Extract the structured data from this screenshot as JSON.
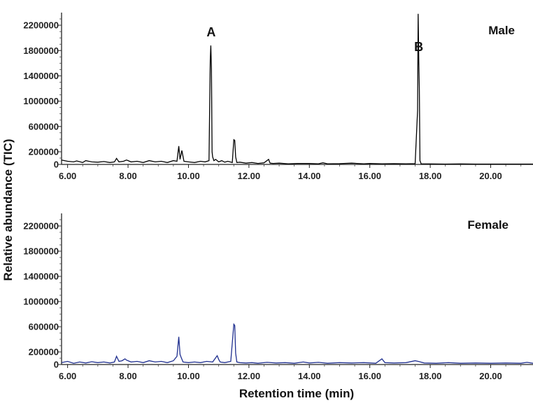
{
  "chart_data": [
    {
      "type": "line",
      "panel_label": "Male",
      "color": "#000000",
      "xlim": [
        5.8,
        21.4
      ],
      "ylim": [
        0,
        2400000
      ],
      "x_ticks": [
        "6.00",
        "8.00",
        "10.00",
        "12.00",
        "14.00",
        "16.00",
        "18.00",
        "20.00"
      ],
      "y_ticks": [
        "0",
        "200000",
        "600000",
        "1000000",
        "1400000",
        "1800000",
        "2200000"
      ],
      "peak_labels": [
        {
          "text": "A",
          "x": 10.75
        },
        {
          "text": "B",
          "x": 17.62
        }
      ],
      "series": [
        {
          "x": [
            5.8,
            6.0,
            6.2,
            6.3,
            6.5,
            6.6,
            6.8,
            7.0,
            7.2,
            7.4,
            7.55,
            7.62,
            7.7,
            7.85,
            7.95,
            8.1,
            8.3,
            8.5,
            8.7,
            8.9,
            9.1,
            9.3,
            9.5,
            9.62,
            9.68,
            9.72,
            9.78,
            9.85,
            10.0,
            10.2,
            10.4,
            10.55,
            10.68,
            10.72,
            10.74,
            10.76,
            10.78,
            10.8,
            10.84,
            10.9,
            11.0,
            11.1,
            11.2,
            11.3,
            11.45,
            11.5,
            11.53,
            11.56,
            11.6,
            11.7,
            11.9,
            12.1,
            12.3,
            12.5,
            12.65,
            12.7,
            12.8,
            13.0,
            13.3,
            13.6,
            14.0,
            14.3,
            14.45,
            14.6,
            15.0,
            15.4,
            15.8,
            16.0,
            16.4,
            16.8,
            17.2,
            17.5,
            17.58,
            17.6,
            17.62,
            17.64,
            17.66,
            17.7,
            18.0,
            18.5,
            19.0,
            19.5,
            20.0,
            20.5,
            21.0,
            21.4
          ],
          "y": [
            70000,
            50000,
            40000,
            55000,
            30000,
            60000,
            40000,
            35000,
            45000,
            30000,
            40000,
            95000,
            40000,
            50000,
            70000,
            40000,
            50000,
            30000,
            60000,
            40000,
            50000,
            30000,
            60000,
            50000,
            290000,
            80000,
            220000,
            50000,
            40000,
            30000,
            50000,
            40000,
            60000,
            1650000,
            1880000,
            1500000,
            200000,
            120000,
            60000,
            80000,
            40000,
            60000,
            35000,
            50000,
            30000,
            390000,
            380000,
            120000,
            30000,
            35000,
            20000,
            30000,
            15000,
            25000,
            80000,
            20000,
            15000,
            20000,
            10000,
            15000,
            15000,
            10000,
            25000,
            10000,
            12000,
            20000,
            10000,
            15000,
            10000,
            12000,
            10000,
            12000,
            850000,
            2380000,
            1650000,
            1200000,
            60000,
            10000,
            8000,
            6000,
            8000,
            5000,
            6000,
            5000,
            6000,
            5000
          ]
        }
      ]
    },
    {
      "type": "line",
      "panel_label": "Female",
      "color": "#1f2f8f",
      "xlim": [
        5.8,
        21.4
      ],
      "ylim": [
        0,
        2400000
      ],
      "x_ticks": [
        "6.00",
        "8.00",
        "10.00",
        "12.00",
        "14.00",
        "16.00",
        "18.00",
        "20.00"
      ],
      "y_ticks": [
        "0",
        "200000",
        "600000",
        "1000000",
        "1400000",
        "1800000",
        "2200000"
      ],
      "series": [
        {
          "x": [
            5.8,
            6.0,
            6.2,
            6.4,
            6.6,
            6.8,
            7.0,
            7.2,
            7.4,
            7.55,
            7.62,
            7.7,
            7.8,
            7.9,
            7.95,
            8.1,
            8.3,
            8.5,
            8.7,
            8.9,
            9.1,
            9.3,
            9.5,
            9.62,
            9.68,
            9.72,
            9.76,
            9.82,
            10.0,
            10.2,
            10.4,
            10.6,
            10.8,
            10.95,
            11.0,
            11.05,
            11.2,
            11.4,
            11.5,
            11.53,
            11.56,
            11.6,
            11.7,
            11.9,
            12.1,
            12.3,
            12.6,
            12.9,
            13.2,
            13.5,
            13.8,
            14.0,
            14.3,
            14.6,
            15.0,
            15.4,
            15.8,
            16.2,
            16.4,
            16.5,
            16.8,
            17.2,
            17.5,
            17.6,
            17.8,
            18.2,
            18.6,
            19.0,
            19.5,
            20.0,
            20.5,
            21.0,
            21.2,
            21.4
          ],
          "y": [
            30000,
            50000,
            20000,
            40000,
            25000,
            45000,
            30000,
            40000,
            25000,
            40000,
            130000,
            50000,
            60000,
            90000,
            70000,
            40000,
            50000,
            30000,
            60000,
            40000,
            50000,
            30000,
            60000,
            130000,
            440000,
            160000,
            110000,
            40000,
            30000,
            40000,
            30000,
            50000,
            40000,
            140000,
            80000,
            40000,
            30000,
            50000,
            640000,
            620000,
            180000,
            40000,
            30000,
            25000,
            30000,
            20000,
            35000,
            25000,
            30000,
            20000,
            40000,
            25000,
            35000,
            20000,
            30000,
            25000,
            30000,
            20000,
            90000,
            30000,
            25000,
            30000,
            60000,
            50000,
            25000,
            20000,
            30000,
            20000,
            25000,
            20000,
            25000,
            20000,
            35000,
            20000
          ]
        }
      ]
    }
  ],
  "axes": {
    "ylabel": "Relative abundance (TIC)",
    "xlabel": "Retention time (min)"
  }
}
